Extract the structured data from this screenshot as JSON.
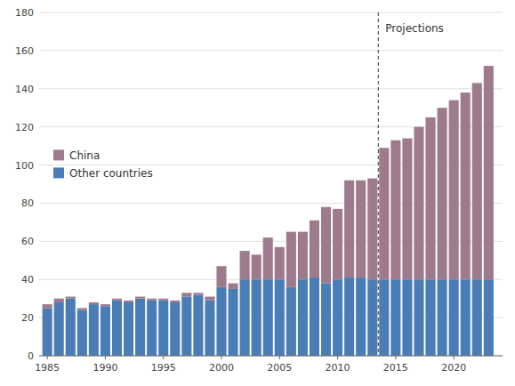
{
  "chart_data": {
    "type": "bar",
    "stacked": true,
    "x": [
      1985,
      1986,
      1987,
      1988,
      1989,
      1990,
      1991,
      1992,
      1993,
      1994,
      1995,
      1996,
      1997,
      1998,
      1999,
      2000,
      2001,
      2002,
      2003,
      2004,
      2005,
      2006,
      2007,
      2008,
      2009,
      2010,
      2011,
      2012,
      2013,
      2014,
      2015,
      2016,
      2017,
      2018,
      2019,
      2020,
      2021,
      2022,
      2023
    ],
    "series": [
      {
        "name": "Other countries",
        "color": "#4a7db5",
        "values": [
          25,
          28,
          30,
          24,
          27,
          26,
          29,
          28,
          30,
          29,
          29,
          28,
          31,
          32,
          29,
          36,
          35,
          40,
          40,
          40,
          40,
          36,
          40,
          41,
          38,
          40,
          41,
          41,
          40,
          40,
          40,
          40,
          40,
          40,
          40,
          40,
          40,
          40,
          40
        ]
      },
      {
        "name": "China",
        "color": "#9e7b8c",
        "values": [
          2,
          2,
          1,
          1,
          1,
          1,
          1,
          1,
          1,
          1,
          1,
          1,
          2,
          1,
          2,
          11,
          3,
          15,
          13,
          22,
          17,
          29,
          25,
          30,
          40,
          37,
          51,
          51,
          53,
          69,
          73,
          74,
          80,
          85,
          90,
          94,
          98,
          103,
          112
        ]
      }
    ],
    "xlim": [
      1984.3,
      2024.2
    ],
    "xticks": [
      1985,
      1990,
      1995,
      2000,
      2005,
      2010,
      2015,
      2020
    ],
    "ylim": [
      0,
      180
    ],
    "yticks": [
      0,
      20,
      40,
      60,
      80,
      100,
      120,
      140,
      160,
      180
    ],
    "grid": true,
    "legend": "upper left",
    "annotations": [
      {
        "text": "Projections",
        "x": 2013.5
      }
    ]
  }
}
